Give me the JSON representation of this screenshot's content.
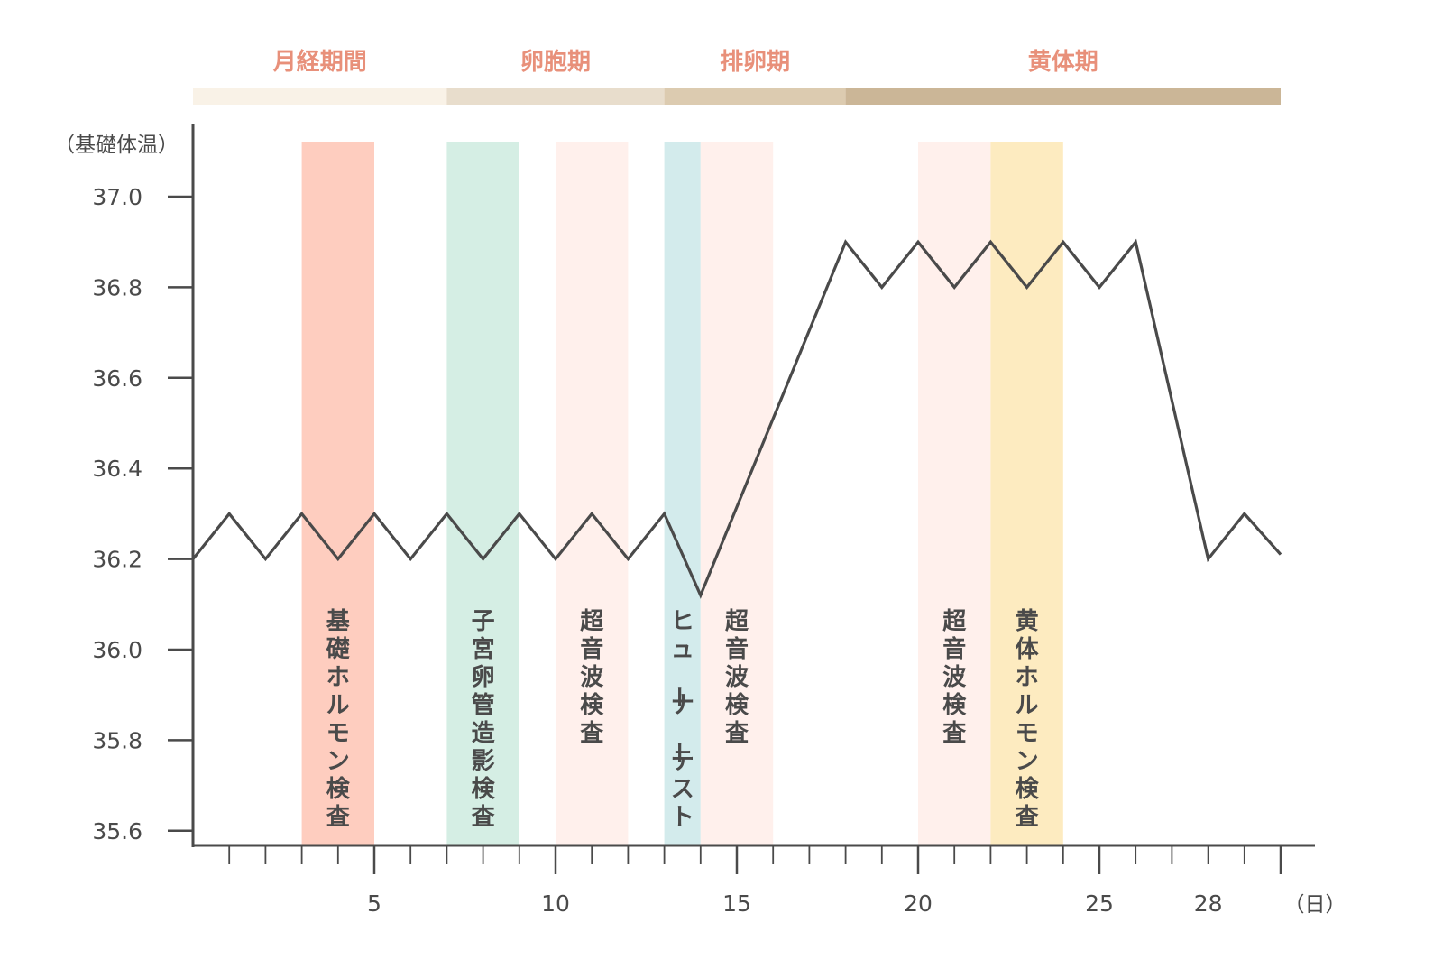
{
  "chart_data": {
    "type": "line",
    "ylabel": "（基礎体温）",
    "xlabel": "（日）",
    "ylim": [
      35.6,
      37.0
    ],
    "yticks": [
      "37.0",
      "36.8",
      "36.6",
      "36.4",
      "36.2",
      "36.0",
      "35.8",
      "35.6"
    ],
    "ytick_values": [
      37.0,
      36.8,
      36.6,
      36.4,
      36.2,
      36.0,
      35.8,
      35.6
    ],
    "xlim": [
      0,
      30
    ],
    "xtick_labels": [
      {
        "day": 5,
        "label": "5"
      },
      {
        "day": 10,
        "label": "10"
      },
      {
        "day": 15,
        "label": "15"
      },
      {
        "day": 20,
        "label": "20"
      },
      {
        "day": 25,
        "label": "25"
      },
      {
        "day": 28,
        "label": "28"
      }
    ],
    "grid": false,
    "series": [
      {
        "x": [
          0,
          1,
          2,
          3,
          4,
          5,
          6,
          7,
          8,
          9,
          10,
          11,
          12,
          13,
          14,
          18,
          19,
          20,
          21,
          22,
          23,
          24,
          25,
          26,
          28,
          29,
          30
        ],
        "values": [
          36.2,
          36.3,
          36.2,
          36.3,
          36.2,
          36.3,
          36.2,
          36.3,
          36.2,
          36.3,
          36.2,
          36.3,
          36.2,
          36.3,
          36.12,
          36.9,
          36.8,
          36.9,
          36.8,
          36.9,
          36.8,
          36.9,
          36.8,
          36.9,
          36.2,
          36.3,
          36.21
        ],
        "color": "#4a4a4a"
      }
    ],
    "phases": [
      {
        "label": "月経期間",
        "start": 0,
        "end": 7,
        "color": "#f9f2e7"
      },
      {
        "label": "卵胞期",
        "start": 7,
        "end": 13,
        "color": "#e8ddcc"
      },
      {
        "label": "排卵期",
        "start": 13,
        "end": 18,
        "color": "#dccbb0"
      },
      {
        "label": "黄体期",
        "start": 18,
        "end": 30,
        "color": "#cbb697"
      }
    ],
    "phase_label_color": "#e8907a",
    "bands": [
      {
        "label": "基礎ホルモン検査",
        "start": 3,
        "end": 5,
        "color": "#fecdbf"
      },
      {
        "label": "子宮卵管造影検査",
        "start": 7,
        "end": 9,
        "color": "#d5eee4"
      },
      {
        "label": "超音波検査",
        "start": 10,
        "end": 12,
        "color": "#fff0ec"
      },
      {
        "label": "ヒューナーテスト",
        "start": 13,
        "end": 14,
        "color": "#d3ebec"
      },
      {
        "label": "超音波検査",
        "start": 14,
        "end": 16,
        "color": "#fff0ec"
      },
      {
        "label": "超音波検査",
        "start": 20,
        "end": 22,
        "color": "#fff0ec"
      },
      {
        "label": "黄体ホルモン検査",
        "start": 22,
        "end": 24,
        "color": "#fdebc0"
      }
    ]
  }
}
